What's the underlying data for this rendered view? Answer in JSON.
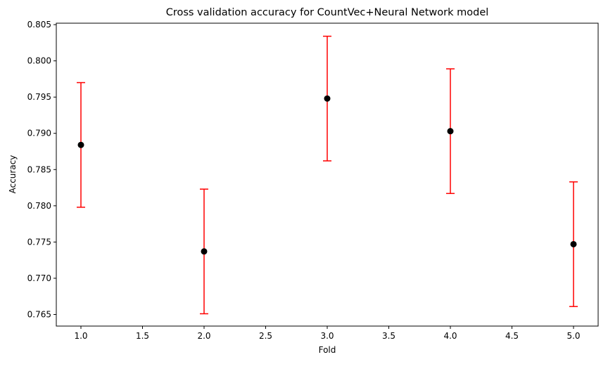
{
  "chart_data": {
    "type": "scatter",
    "title": "Cross validation accuracy for CountVec+Neural Network model",
    "xlabel": "Fold",
    "ylabel": "Accuracy",
    "xlim": [
      0.8,
      5.2
    ],
    "ylim": [
      0.7634,
      0.8052
    ],
    "xticks": [
      1.0,
      1.5,
      2.0,
      2.5,
      3.0,
      3.5,
      4.0,
      4.5,
      5.0
    ],
    "xtick_labels": [
      "1.0",
      "1.5",
      "2.0",
      "2.5",
      "3.0",
      "3.5",
      "4.0",
      "4.5",
      "5.0"
    ],
    "yticks": [
      0.765,
      0.77,
      0.775,
      0.78,
      0.785,
      0.79,
      0.795,
      0.8,
      0.805
    ],
    "ytick_labels": [
      "0.765",
      "0.770",
      "0.775",
      "0.780",
      "0.785",
      "0.790",
      "0.795",
      "0.800",
      "0.805"
    ],
    "grid": false,
    "series": [
      {
        "x": [
          1,
          2,
          3,
          4,
          5
        ],
        "y": [
          0.7884,
          0.7737,
          0.7948,
          0.7903,
          0.7747
        ],
        "yerr": [
          0.0086,
          0.0086,
          0.0086,
          0.0086,
          0.0086
        ],
        "marker_color": "#000000",
        "errorbar_color": "#ff0000"
      }
    ]
  }
}
